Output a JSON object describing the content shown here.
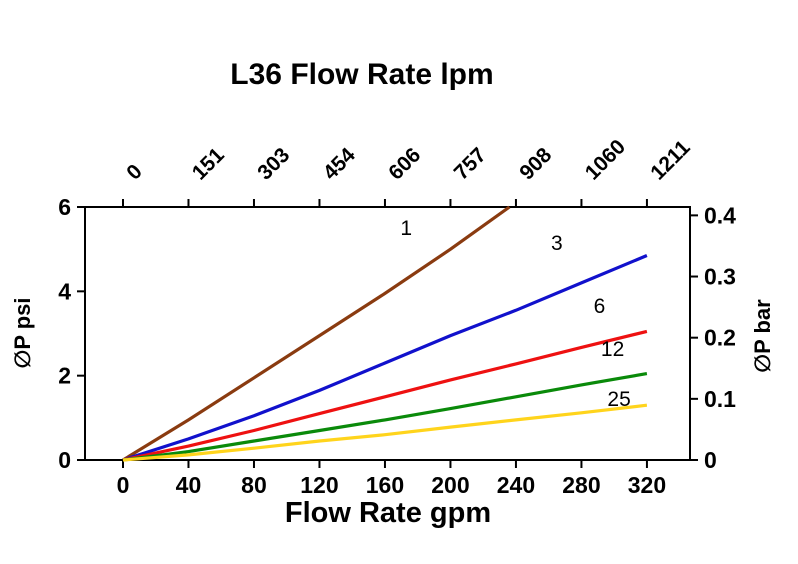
{
  "page": {
    "background": "#ffffff"
  },
  "chart_data": {
    "type": "line",
    "title": "L36 Flow Rate lpm",
    "xlabel": "Flow Rate gpm",
    "ylabel_left": "∅P psi",
    "ylabel_right": "∅P bar",
    "x_bottom_unit": "gpm",
    "x_top_unit": "lpm",
    "x_ticks_gpm": [
      0,
      40,
      80,
      120,
      160,
      200,
      240,
      280,
      320
    ],
    "x_ticks_lpm": [
      "0",
      "151",
      "303",
      "454",
      "606",
      "757",
      "908",
      "1060",
      "1211"
    ],
    "y_ticks_psi": [
      0,
      2,
      4,
      6
    ],
    "y_ticks_bar": [
      "0",
      "0.1",
      "0.2",
      "0.3",
      "0.4"
    ],
    "psi_per_bar": 14.5038,
    "xlim": [
      -23.2,
      346.3
    ],
    "ylim_psi": [
      0,
      6
    ],
    "grid": false,
    "legend_position": "inline-labels",
    "series": [
      {
        "name": "1",
        "color": "#8a3b10",
        "x": [
          0,
          40,
          80,
          120,
          160,
          200,
          236
        ],
        "y": [
          0,
          0.95,
          1.95,
          2.95,
          3.95,
          5.0,
          6.0
        ],
        "label": {
          "x": 173,
          "y": 5.5
        }
      },
      {
        "name": "3",
        "color": "#1111cc",
        "x": [
          0,
          40,
          80,
          120,
          160,
          200,
          240,
          280,
          320
        ],
        "y": [
          0,
          0.5,
          1.05,
          1.65,
          2.3,
          2.95,
          3.55,
          4.2,
          4.85
        ],
        "label": {
          "x": 265,
          "y": 5.15
        }
      },
      {
        "name": "6",
        "color": "#ee1111",
        "x": [
          0,
          40,
          80,
          120,
          160,
          200,
          240,
          280,
          320
        ],
        "y": [
          0,
          0.33,
          0.7,
          1.1,
          1.5,
          1.9,
          2.28,
          2.67,
          3.05
        ],
        "label": {
          "x": 291,
          "y": 3.65
        }
      },
      {
        "name": "12",
        "color": "#0a8a0a",
        "x": [
          0,
          40,
          80,
          120,
          160,
          200,
          240,
          280,
          320
        ],
        "y": [
          0,
          0.2,
          0.45,
          0.7,
          0.95,
          1.22,
          1.5,
          1.78,
          2.05
        ],
        "label": {
          "x": 299,
          "y": 2.63
        }
      },
      {
        "name": "25",
        "color": "#ffd41c",
        "x": [
          0,
          40,
          80,
          120,
          160,
          200,
          240,
          280,
          320
        ],
        "y": [
          0,
          0.12,
          0.28,
          0.45,
          0.6,
          0.78,
          0.95,
          1.12,
          1.3
        ],
        "label": {
          "x": 303,
          "y": 1.45
        }
      }
    ]
  }
}
